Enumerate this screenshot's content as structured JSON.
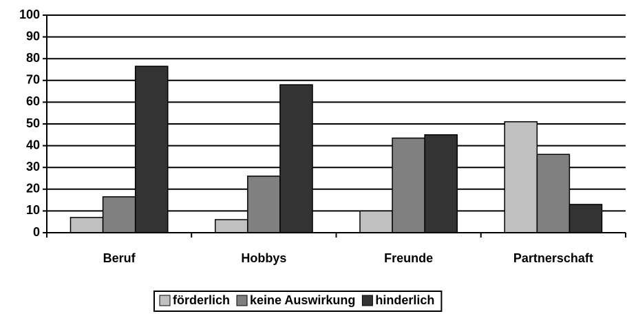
{
  "chart_data": {
    "type": "bar",
    "categories": [
      "Beruf",
      "Hobbys",
      "Freunde",
      "Partnerschaft"
    ],
    "series": [
      {
        "name": "förderlich",
        "color": "#c0c0c0",
        "values": [
          7,
          6,
          10,
          51
        ]
      },
      {
        "name": "keine Auswirkung",
        "color": "#808080",
        "values": [
          16.5,
          26,
          43.5,
          36
        ]
      },
      {
        "name": "hinderlich",
        "color": "#333333",
        "values": [
          76.5,
          68,
          45,
          13
        ]
      }
    ],
    "ylim": [
      0,
      100
    ],
    "yticks": [
      0,
      10,
      20,
      30,
      40,
      50,
      60,
      70,
      80,
      90,
      100
    ],
    "grid": true,
    "legend": "bottom"
  }
}
